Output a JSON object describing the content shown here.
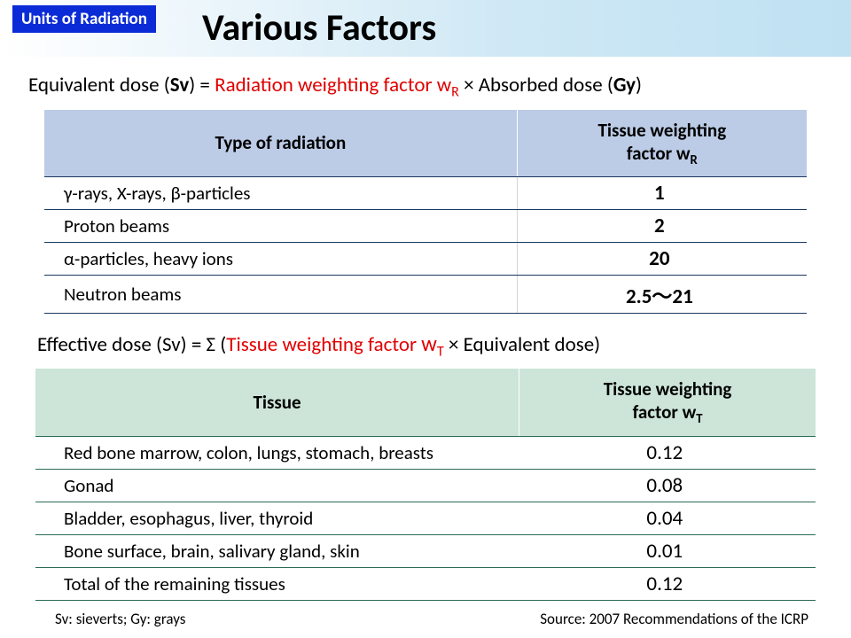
{
  "header": {
    "badge": "Units of Radiation",
    "title": "Various Factors"
  },
  "formula1": {
    "left": "Equivalent dose (",
    "sv": "Sv",
    "eq": ") = ",
    "term_red": "Radiation weighting factor w",
    "term_red_sub": "R",
    "times": " × Absorbed dose (",
    "gy": "Gy",
    "end": ")"
  },
  "table1": {
    "header_col1": "Type of radiation",
    "header_col2_line1": "Tissue weighting",
    "header_col2_line2": "factor w",
    "header_col2_sub": "R",
    "header_bg": "#bccbe6",
    "border_color": "#1a3860",
    "rows": [
      {
        "type": "γ-rays, X-rays, β-particles",
        "val": "1"
      },
      {
        "type": "Proton beams",
        "val": "2"
      },
      {
        "type": "α-particles, heavy ions",
        "val": "20"
      },
      {
        "type": "Neutron beams",
        "val": "2.5～21"
      }
    ]
  },
  "formula2": {
    "left": "Effective dose (Sv) = Σ (",
    "term_red": "Tissue weighting factor ",
    "wT": "w",
    "wT_sub": "T",
    "rest": " × Equivalent dose)"
  },
  "table2": {
    "header_col1": "Tissue",
    "header_col2_line1": "Tissue weighting",
    "header_col2_line2": "factor w",
    "header_col2_sub": "T",
    "header_bg": "#cce5d8",
    "border_color": "#2b6b55",
    "rows": [
      {
        "tissue": "Red bone marrow, colon, lungs, stomach, breasts",
        "val": "0.12"
      },
      {
        "tissue": "Gonad",
        "val": "0.08"
      },
      {
        "tissue": "Bladder, esophagus, liver, thyroid",
        "val": "0.04"
      },
      {
        "tissue": "Bone surface, brain, salivary gland, skin",
        "val": "0.01"
      },
      {
        "tissue": "Total of the remaining tissues",
        "val": "0.12"
      }
    ]
  },
  "footer": {
    "left": "Sv: sieverts; Gy: grays",
    "right": "Source: 2007 Recommendations of the ICRP"
  }
}
